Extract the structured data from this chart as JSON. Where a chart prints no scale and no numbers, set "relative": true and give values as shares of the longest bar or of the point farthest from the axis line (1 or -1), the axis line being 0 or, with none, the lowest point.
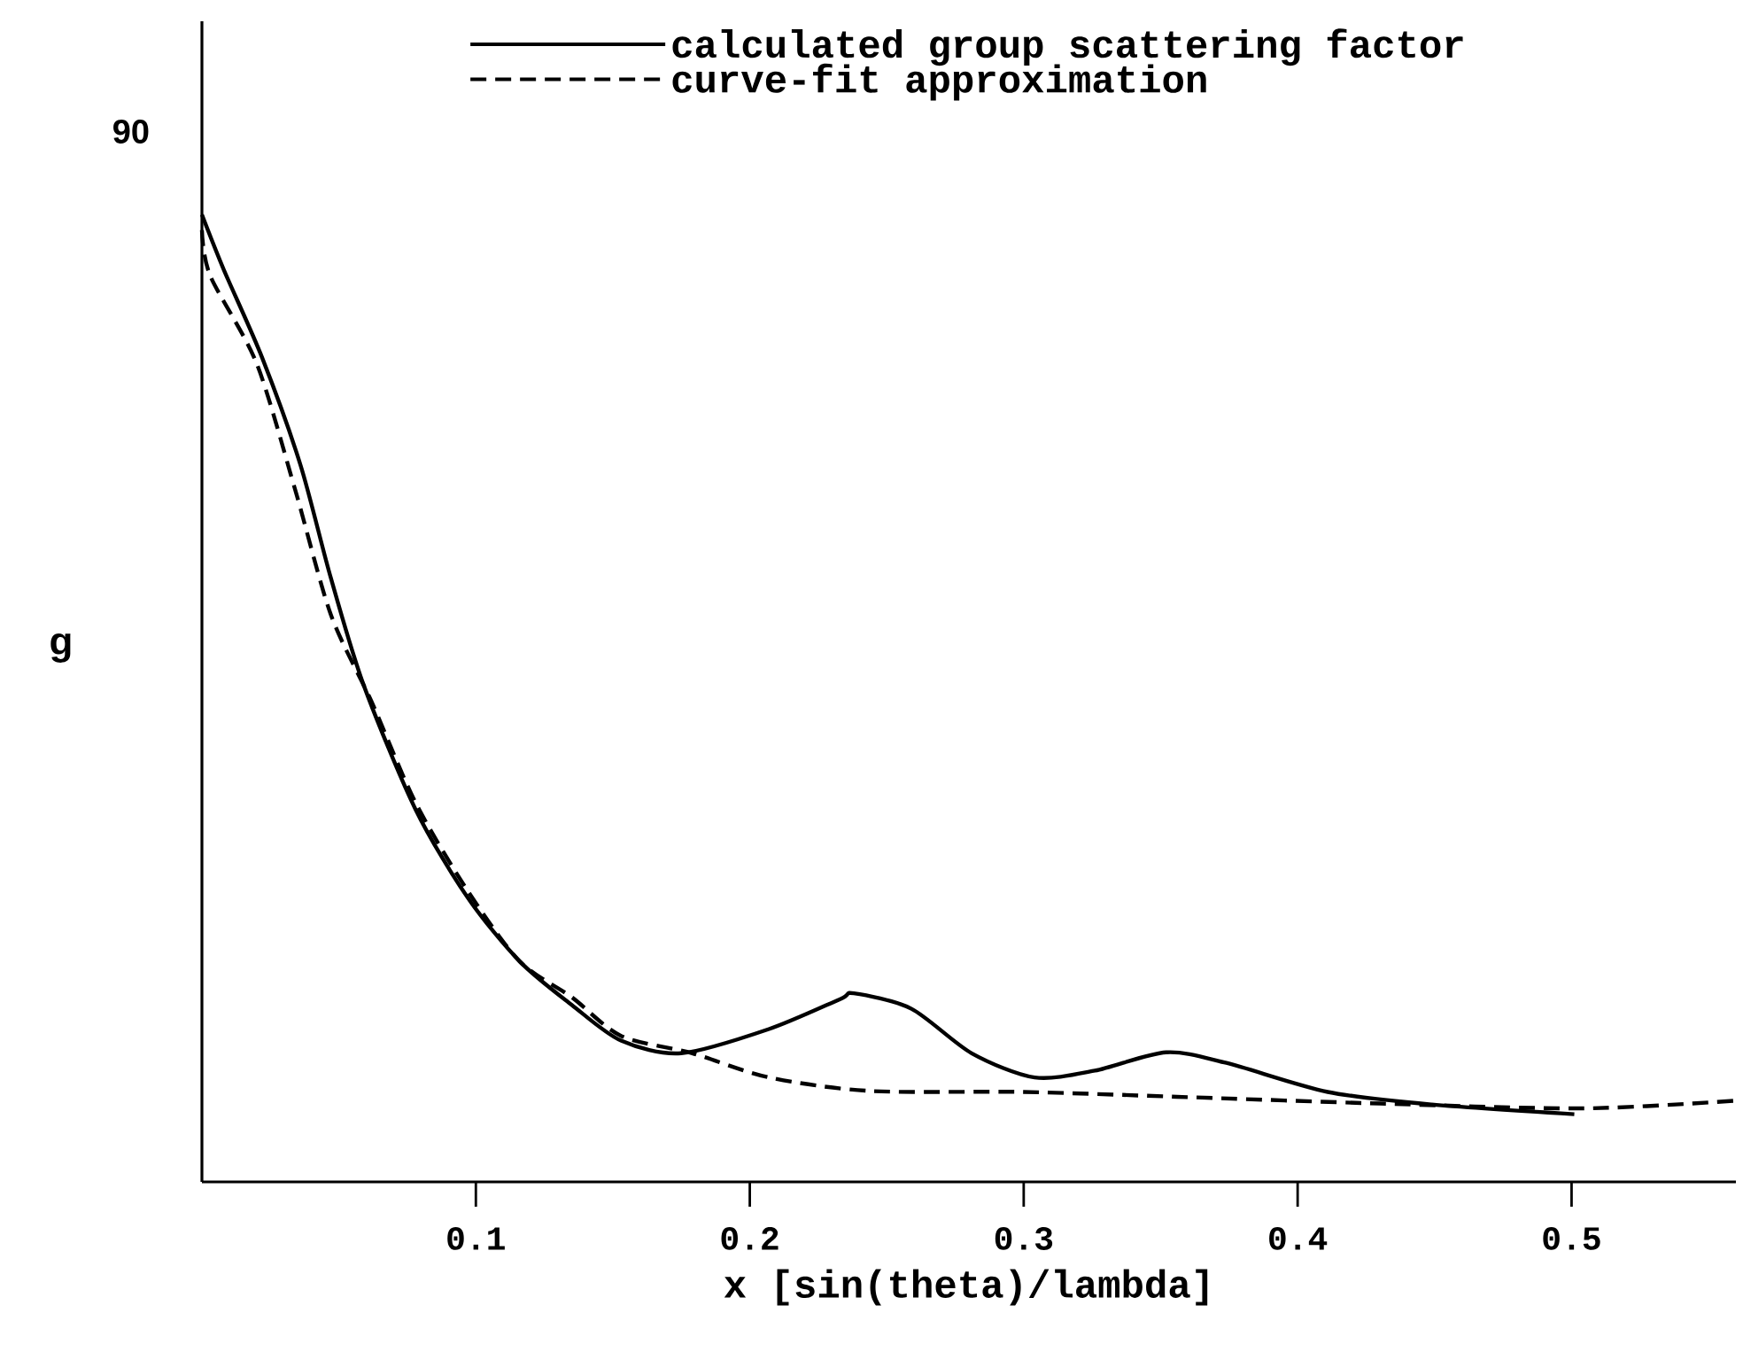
{
  "chart_data": {
    "type": "line",
    "relative": true,
    "xlabel": "x [sin(theta)/lambda]",
    "ylabel": "g",
    "annotations": [
      "90"
    ],
    "xlim": [
      0,
      0.56
    ],
    "xticks": [
      0.1,
      0.2,
      0.3,
      0.4,
      0.5
    ],
    "legend": "top",
    "series": [
      {
        "name": "calculated group scattering factor",
        "color": "#000000",
        "line_style": "solid",
        "x": [
          0,
          0.008,
          0.022,
          0.036,
          0.047,
          0.059,
          0.078,
          0.097,
          0.116,
          0.135,
          0.153,
          0.175,
          0.207,
          0.233,
          0.238,
          0.259,
          0.281,
          0.304,
          0.326,
          0.352,
          0.374,
          0.411,
          0.449,
          0.501
        ],
        "values": [
          1,
          0.943,
          0.852,
          0.741,
          0.625,
          0.514,
          0.385,
          0.294,
          0.228,
          0.183,
          0.146,
          0.133,
          0.158,
          0.189,
          0.195,
          0.179,
          0.133,
          0.108,
          0.115,
          0.134,
          0.123,
          0.093,
          0.08,
          0.07
        ]
      },
      {
        "name": "curve-fit approximation",
        "color": "#000000",
        "line_style": "dashed",
        "x": [
          0,
          0.003,
          0.02,
          0.034,
          0.047,
          0.062,
          0.078,
          0.097,
          0.116,
          0.135,
          0.153,
          0.179,
          0.207,
          0.244,
          0.3,
          0.356,
          0.43,
          0.504,
          0.56
        ],
        "values": [
          0.984,
          0.937,
          0.846,
          0.716,
          0.587,
          0.496,
          0.392,
          0.301,
          0.228,
          0.191,
          0.151,
          0.133,
          0.108,
          0.094,
          0.093,
          0.088,
          0.081,
          0.076,
          0.084
        ]
      }
    ]
  }
}
